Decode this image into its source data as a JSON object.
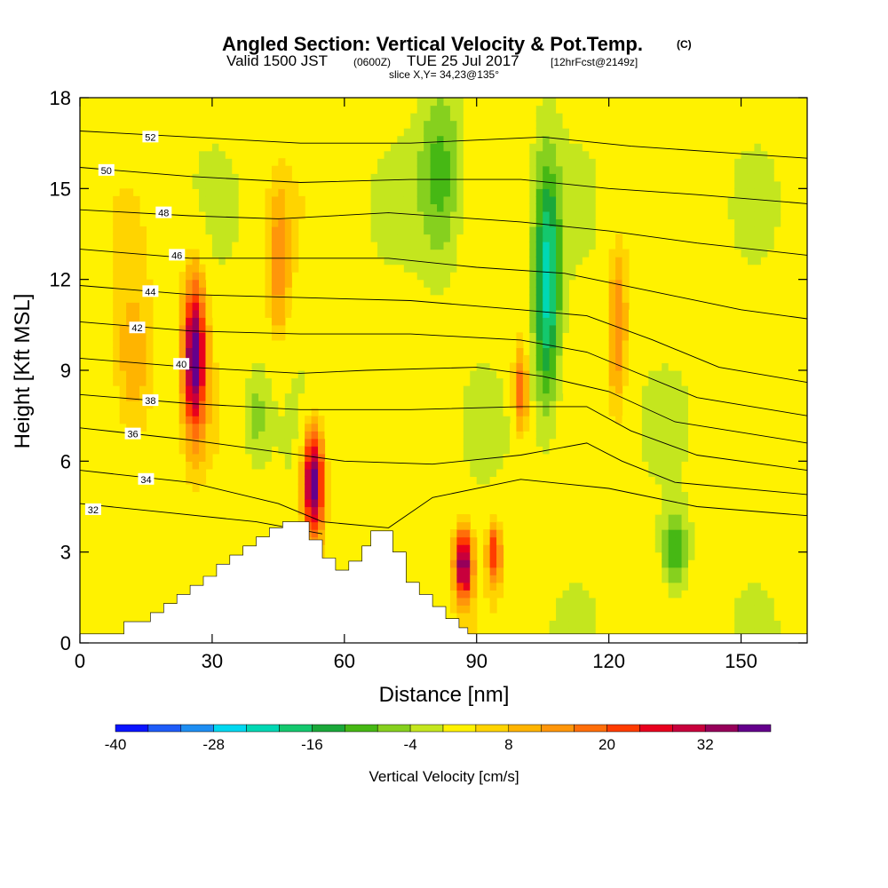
{
  "title": {
    "main": "Angled Section: Vertical Velocity & Pot.Temp.",
    "main_tag": "(C)",
    "valid_prefix": "Valid 1500 JST",
    "valid_utc": "(0600Z)",
    "valid_date": "TUE 25 Jul 2017",
    "forecast_tag": "[12hrFcst@2149z]",
    "slice": "slice X,Y= 34,23@135°"
  },
  "chart_data": {
    "type": "heatmap",
    "xlabel": "Distance [nm]",
    "ylabel": "Height [Kft MSL]",
    "xlim": [
      0,
      165
    ],
    "ylim": [
      0,
      18
    ],
    "x_ticks": [
      "0",
      "30",
      "60",
      "90",
      "120",
      "150"
    ],
    "y_ticks": [
      "0",
      "3",
      "6",
      "9",
      "12",
      "15",
      "18"
    ],
    "colorbar": {
      "label": "Vertical Velocity [cm/s]",
      "tick_labels": [
        "-40",
        "-28",
        "-16",
        "-4",
        "8",
        "20",
        "32"
      ],
      "levels": [
        -40,
        -36,
        -32,
        -28,
        -24,
        -20,
        -16,
        -12,
        -8,
        -4,
        0,
        4,
        8,
        12,
        16,
        20,
        24,
        28,
        32,
        36,
        40
      ],
      "colors": [
        "#0a14ff",
        "#1e5cf8",
        "#1e8ef2",
        "#00d8f0",
        "#00d8b4",
        "#14c86e",
        "#1aa83a",
        "#46b814",
        "#86d01e",
        "#c4e61e",
        "#fff200",
        "#ffd400",
        "#ffb400",
        "#ff960a",
        "#ff6e0a",
        "#ff3c00",
        "#e8001e",
        "#c8003c",
        "#96005a",
        "#64008c"
      ]
    },
    "terrain_kft": [
      [
        0,
        0.3
      ],
      [
        10,
        0.3
      ],
      [
        10,
        0.7
      ],
      [
        16,
        0.7
      ],
      [
        16,
        1.0
      ],
      [
        19,
        1.0
      ],
      [
        19,
        1.3
      ],
      [
        22,
        1.3
      ],
      [
        22,
        1.6
      ],
      [
        25,
        1.6
      ],
      [
        25,
        1.9
      ],
      [
        28,
        1.9
      ],
      [
        28,
        2.2
      ],
      [
        31,
        2.2
      ],
      [
        31,
        2.6
      ],
      [
        34,
        2.6
      ],
      [
        34,
        2.9
      ],
      [
        37,
        2.9
      ],
      [
        37,
        3.2
      ],
      [
        40,
        3.2
      ],
      [
        40,
        3.5
      ],
      [
        43,
        3.5
      ],
      [
        43,
        3.8
      ],
      [
        46,
        3.8
      ],
      [
        46,
        4.0
      ],
      [
        52,
        4.0
      ],
      [
        52,
        3.4
      ],
      [
        55,
        3.4
      ],
      [
        55,
        2.8
      ],
      [
        58,
        2.8
      ],
      [
        58,
        2.4
      ],
      [
        61,
        2.4
      ],
      [
        61,
        2.7
      ],
      [
        64,
        2.7
      ],
      [
        64,
        3.2
      ],
      [
        66,
        3.2
      ],
      [
        66,
        3.7
      ],
      [
        71,
        3.7
      ],
      [
        71,
        3.0
      ],
      [
        74,
        3.0
      ],
      [
        74,
        2.0
      ],
      [
        77,
        2.0
      ],
      [
        77,
        1.6
      ],
      [
        80,
        1.6
      ],
      [
        80,
        1.2
      ],
      [
        83,
        1.2
      ],
      [
        83,
        0.8
      ],
      [
        86,
        0.8
      ],
      [
        86,
        0.5
      ],
      [
        88,
        0.5
      ],
      [
        88,
        0.3
      ],
      [
        165,
        0.3
      ]
    ],
    "theta_contours": [
      {
        "label": "32",
        "label_pos": [
          3,
          4.4
        ],
        "pts": [
          [
            0,
            4.6
          ],
          [
            20,
            4.3
          ],
          [
            40,
            4.0
          ],
          [
            55,
            3.6
          ]
        ]
      },
      {
        "label": "34",
        "label_pos": [
          15,
          5.4
        ],
        "pts": [
          [
            0,
            5.7
          ],
          [
            25,
            5.3
          ],
          [
            45,
            4.6
          ],
          [
            55,
            4.0
          ],
          [
            70,
            3.8
          ],
          [
            80,
            4.8
          ],
          [
            100,
            5.4
          ],
          [
            120,
            5.1
          ],
          [
            140,
            4.5
          ],
          [
            165,
            4.2
          ]
        ]
      },
      {
        "label": "36",
        "label_pos": [
          12,
          6.9
        ],
        "pts": [
          [
            0,
            7.1
          ],
          [
            25,
            6.7
          ],
          [
            45,
            6.3
          ],
          [
            60,
            6.0
          ],
          [
            80,
            5.9
          ],
          [
            100,
            6.2
          ],
          [
            115,
            6.6
          ],
          [
            123,
            6.0
          ],
          [
            135,
            5.3
          ],
          [
            165,
            4.9
          ]
        ]
      },
      {
        "label": "38",
        "label_pos": [
          16,
          8.0
        ],
        "pts": [
          [
            0,
            8.2
          ],
          [
            25,
            7.9
          ],
          [
            50,
            7.7
          ],
          [
            75,
            7.7
          ],
          [
            100,
            7.8
          ],
          [
            115,
            7.8
          ],
          [
            125,
            7.0
          ],
          [
            140,
            6.2
          ],
          [
            165,
            5.7
          ]
        ]
      },
      {
        "label": "40",
        "label_pos": [
          23,
          9.2
        ],
        "pts": [
          [
            0,
            9.4
          ],
          [
            25,
            9.1
          ],
          [
            50,
            8.9
          ],
          [
            65,
            9.0
          ],
          [
            90,
            9.1
          ],
          [
            105,
            8.8
          ],
          [
            120,
            8.3
          ],
          [
            135,
            7.3
          ],
          [
            165,
            6.6
          ]
        ]
      },
      {
        "label": "42",
        "label_pos": [
          13,
          10.4
        ],
        "pts": [
          [
            0,
            10.6
          ],
          [
            25,
            10.3
          ],
          [
            50,
            10.2
          ],
          [
            75,
            10.2
          ],
          [
            100,
            10.0
          ],
          [
            115,
            9.6
          ],
          [
            125,
            9.0
          ],
          [
            140,
            8.1
          ],
          [
            165,
            7.5
          ]
        ]
      },
      {
        "label": "44",
        "label_pos": [
          16,
          11.6
        ],
        "pts": [
          [
            0,
            11.8
          ],
          [
            25,
            11.5
          ],
          [
            50,
            11.4
          ],
          [
            75,
            11.3
          ],
          [
            100,
            11.0
          ],
          [
            115,
            10.8
          ],
          [
            130,
            10.0
          ],
          [
            145,
            9.1
          ],
          [
            165,
            8.6
          ]
        ]
      },
      {
        "label": "46",
        "label_pos": [
          22,
          12.8
        ],
        "pts": [
          [
            0,
            13.0
          ],
          [
            25,
            12.7
          ],
          [
            45,
            12.7
          ],
          [
            70,
            12.7
          ],
          [
            90,
            12.4
          ],
          [
            110,
            12.2
          ],
          [
            130,
            11.6
          ],
          [
            150,
            11.0
          ],
          [
            165,
            10.7
          ]
        ]
      },
      {
        "label": "48",
        "label_pos": [
          19,
          14.2
        ],
        "pts": [
          [
            0,
            14.3
          ],
          [
            25,
            14.1
          ],
          [
            45,
            14.0
          ],
          [
            70,
            14.2
          ],
          [
            100,
            13.9
          ],
          [
            120,
            13.6
          ],
          [
            140,
            13.2
          ],
          [
            165,
            12.8
          ]
        ]
      },
      {
        "label": "50",
        "label_pos": [
          6,
          15.6
        ],
        "pts": [
          [
            0,
            15.7
          ],
          [
            25,
            15.4
          ],
          [
            50,
            15.2
          ],
          [
            75,
            15.3
          ],
          [
            100,
            15.3
          ],
          [
            120,
            15.0
          ],
          [
            140,
            14.8
          ],
          [
            165,
            14.5
          ]
        ]
      },
      {
        "label": "52",
        "label_pos": [
          16,
          16.7
        ],
        "pts": [
          [
            0,
            16.9
          ],
          [
            25,
            16.7
          ],
          [
            50,
            16.5
          ],
          [
            75,
            16.5
          ],
          [
            105,
            16.7
          ],
          [
            125,
            16.4
          ],
          [
            145,
            16.2
          ],
          [
            165,
            16.0
          ]
        ]
      }
    ],
    "w_field_cells": [
      {
        "x": 26,
        "z": 9.5,
        "sx": 2.5,
        "sz": 2.5,
        "w": 38
      },
      {
        "x": 53,
        "z": 5.3,
        "sx": 2.3,
        "sz": 1.8,
        "w": 40
      },
      {
        "x": 87,
        "z": 2.6,
        "sx": 2.0,
        "sz": 1.2,
        "w": 34
      },
      {
        "x": 94,
        "z": 3.0,
        "sx": 1.5,
        "sz": 1.0,
        "w": 22
      },
      {
        "x": 100,
        "z": 8.4,
        "sx": 1.6,
        "sz": 1.4,
        "w": 18
      },
      {
        "x": 45,
        "z": 12.5,
        "sx": 2.5,
        "sz": 2.5,
        "w": 12
      },
      {
        "x": 122,
        "z": 10.5,
        "sx": 2.0,
        "sz": 2.5,
        "w": 14
      },
      {
        "x": 106,
        "z": 11.8,
        "sx": 3.0,
        "sz": 4.0,
        "w": -24
      },
      {
        "x": 82,
        "z": 15.5,
        "sx": 5.0,
        "sz": 3.0,
        "w": -12
      },
      {
        "x": 135,
        "z": 3.0,
        "sx": 3.0,
        "sz": 1.3,
        "w": -14
      },
      {
        "x": 40,
        "z": 7.5,
        "sx": 3.0,
        "sz": 1.5,
        "w": -8
      },
      {
        "x": 12,
        "z": 9.0,
        "sx": 5.0,
        "sz": 3.0,
        "w": 10
      }
    ]
  }
}
